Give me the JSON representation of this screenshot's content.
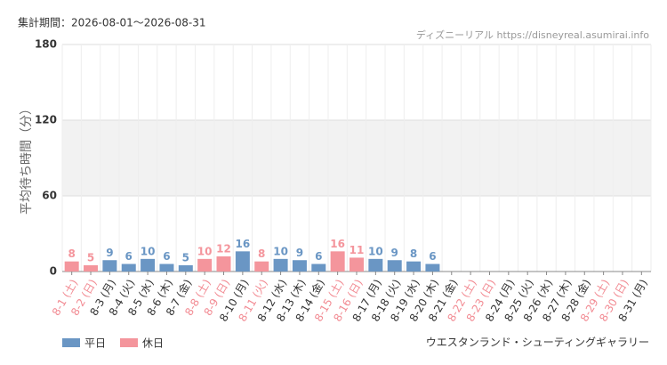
{
  "chart_data": {
    "type": "bar",
    "period": "集計期間：2026-08-01～2026-08-31",
    "source": "ディズニーリアル https://disneyreal.asumirai.info",
    "y_label": "平均待ち時間（分）",
    "footer": "ウエスタンランド・シューティングギャラリー",
    "categories": [
      "8-1 (土)",
      "8-2 (日)",
      "8-3 (月)",
      "8-4 (火)",
      "8-5 (水)",
      "8-6 (木)",
      "8-7 (金)",
      "8-8 (土)",
      "8-9 (日)",
      "8-10 (月)",
      "8-11 (火)",
      "8-12 (水)",
      "8-13 (木)",
      "8-14 (金)",
      "8-15 (土)",
      "8-16 (日)",
      "8-17 (月)",
      "8-18 (火)",
      "8-19 (水)",
      "8-20 (木)",
      "8-21 (金)",
      "8-22 (土)",
      "8-23 (日)",
      "8-24 (月)",
      "8-25 (火)",
      "8-26 (水)",
      "8-27 (木)",
      "8-28 (金)",
      "8-29 (土)",
      "8-30 (日)",
      "8-31 (月)"
    ],
    "category_colors": [
      "#f28b93",
      "#f28b93",
      "#333333",
      "#333333",
      "#333333",
      "#333333",
      "#333333",
      "#f28b93",
      "#f28b93",
      "#333333",
      "#f28b93",
      "#333333",
      "#333333",
      "#333333",
      "#f28b93",
      "#f28b93",
      "#333333",
      "#333333",
      "#333333",
      "#333333",
      "#333333",
      "#f28b93",
      "#f28b93",
      "#333333",
      "#333333",
      "#333333",
      "#333333",
      "#333333",
      "#f28b93",
      "#f28b93",
      "#333333"
    ],
    "series": [
      {
        "name": "平日",
        "color": "#6a96c4",
        "values": [
          null,
          null,
          9,
          6,
          10,
          6,
          5,
          null,
          null,
          16,
          null,
          10,
          9,
          6,
          null,
          null,
          10,
          9,
          8,
          6,
          null,
          null,
          null,
          null,
          null,
          null,
          null,
          null,
          null,
          null,
          null
        ]
      },
      {
        "name": "休日",
        "color": "#f4959c",
        "values": [
          8,
          5,
          null,
          null,
          null,
          null,
          null,
          10,
          12,
          null,
          8,
          null,
          null,
          null,
          16,
          11,
          null,
          null,
          null,
          null,
          null,
          null,
          null,
          null,
          null,
          null,
          null,
          null,
          null,
          null,
          null
        ]
      }
    ],
    "ylim": [
      0,
      180
    ],
    "yticks": [
      0,
      60,
      120,
      180
    ],
    "grid": true
  }
}
